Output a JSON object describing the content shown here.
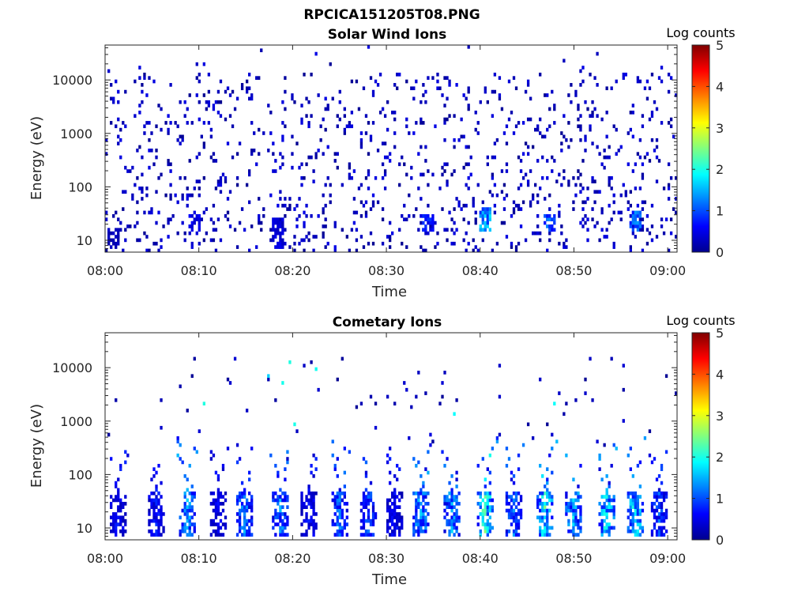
{
  "figure_title": "RPCICA151205T08.PNG",
  "colors": {
    "axis": "#262626",
    "colormap": [
      "#00008f",
      "#0000ff",
      "#0080ff",
      "#00ffff",
      "#80ff80",
      "#ffff00",
      "#ff8000",
      "#ff0000",
      "#800000"
    ]
  },
  "chart_data": [
    {
      "type": "heatmap",
      "title": "Solar Wind Ions",
      "xlabel": "Time",
      "ylabel": "Energy (eV)",
      "x_ticks": [
        "08:00",
        "08:10",
        "08:20",
        "08:30",
        "08:40",
        "08:50",
        "09:00"
      ],
      "x_range": [
        "08:00",
        "09:01"
      ],
      "y_scale": "log",
      "y_ticks": [
        "10",
        "100",
        "1000",
        "10000"
      ],
      "y_range": [
        6,
        45000
      ],
      "colorbar": {
        "label": "Log counts",
        "range": [
          0,
          5
        ],
        "ticks": [
          "0",
          "1",
          "2",
          "3",
          "4",
          "5"
        ]
      },
      "description_of_values": "sparse scattered counts across all energies, mostly log counts 0-1; denser low-energy streaks below ~50 eV",
      "clusters": [
        {
          "time_min": 1,
          "e_min": 7,
          "e_max": 15,
          "value": 0.3
        },
        {
          "time_min": 9.5,
          "e_min": 15,
          "e_max": 30,
          "value": 0.6
        },
        {
          "time_min": 18.5,
          "e_min": 7,
          "e_max": 25,
          "value": 0.5
        },
        {
          "time_min": 34.5,
          "e_min": 15,
          "e_max": 30,
          "value": 0.8
        },
        {
          "time_min": 40.5,
          "e_min": 15,
          "e_max": 40,
          "value": 1.6
        },
        {
          "time_min": 47.5,
          "e_min": 15,
          "e_max": 30,
          "value": 1.2
        },
        {
          "time_min": 56.5,
          "e_min": 15,
          "e_max": 35,
          "value": 1.3
        }
      ]
    },
    {
      "type": "heatmap",
      "title": "Cometary Ions",
      "xlabel": "Time",
      "ylabel": "Energy (eV)",
      "x_ticks": [
        "08:00",
        "08:10",
        "08:20",
        "08:30",
        "08:40",
        "08:50",
        "09:00"
      ],
      "x_range": [
        "08:00",
        "09:01"
      ],
      "y_scale": "log",
      "y_ticks": [
        "10",
        "100",
        "1000",
        "10000"
      ],
      "y_range": [
        6,
        45000
      ],
      "colorbar": {
        "label": "Log counts",
        "range": [
          0,
          5
        ],
        "ticks": [
          "0",
          "1",
          "2",
          "3",
          "4",
          "5"
        ]
      },
      "description_of_values": "periodic bursts roughly every 3 minutes at 10-50 eV with log counts up to ~2.5, plumes extending to several hundred eV",
      "bursts_time_min": [
        1.5,
        5.5,
        8.8,
        12.0,
        14.8,
        18.8,
        21.8,
        25.0,
        28.0,
        30.8,
        33.8,
        37.0,
        40.5,
        43.5,
        47.0,
        50.0,
        53.5,
        56.5,
        59.0
      ],
      "burst_peak_log_counts": [
        0.8,
        0.9,
        1.8,
        0.7,
        1.5,
        1.6,
        0.8,
        1.4,
        1.2,
        0.8,
        1.8,
        1.7,
        2.5,
        1.4,
        2.4,
        1.9,
        2.2,
        2.3,
        1.2
      ]
    }
  ]
}
